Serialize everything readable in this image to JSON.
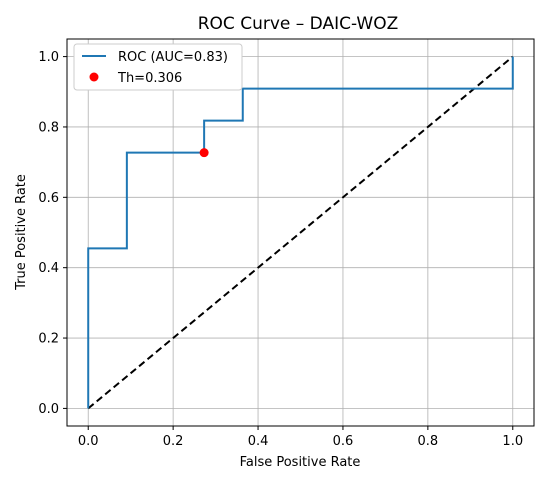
{
  "chart_data": {
    "type": "line",
    "title": "ROC Curve – DAIC-WOZ",
    "xlabel": "False Positive Rate",
    "ylabel": "True Positive Rate",
    "xlim": [
      -0.05,
      1.05
    ],
    "ylim": [
      -0.05,
      1.05
    ],
    "xticks": [
      0.0,
      0.2,
      0.4,
      0.6,
      0.8,
      1.0
    ],
    "yticks": [
      0.0,
      0.2,
      0.4,
      0.6,
      0.8,
      1.0
    ],
    "xtick_labels": [
      "0.0",
      "0.2",
      "0.4",
      "0.6",
      "0.8",
      "1.0"
    ],
    "ytick_labels": [
      "0.0",
      "0.2",
      "0.4",
      "0.6",
      "0.8",
      "1.0"
    ],
    "grid": true,
    "legend_position": "top-left",
    "series": [
      {
        "name": "ROC (AUC=0.83)",
        "kind": "step-line",
        "color": "#1f77b4",
        "x": [
          0.0,
          0.0,
          0.0,
          0.091,
          0.091,
          0.273,
          0.273,
          0.364,
          0.364,
          1.0,
          1.0
        ],
        "y": [
          0.0,
          0.455,
          0.455,
          0.455,
          0.727,
          0.727,
          0.818,
          0.818,
          0.909,
          0.909,
          1.0
        ]
      },
      {
        "name": "Th=0.306",
        "kind": "point",
        "color": "#ff0000",
        "x": [
          0.273
        ],
        "y": [
          0.727
        ]
      },
      {
        "name": "",
        "kind": "diagonal",
        "color": "#000000",
        "x": [
          0.0,
          1.0
        ],
        "y": [
          0.0,
          1.0
        ]
      }
    ]
  }
}
